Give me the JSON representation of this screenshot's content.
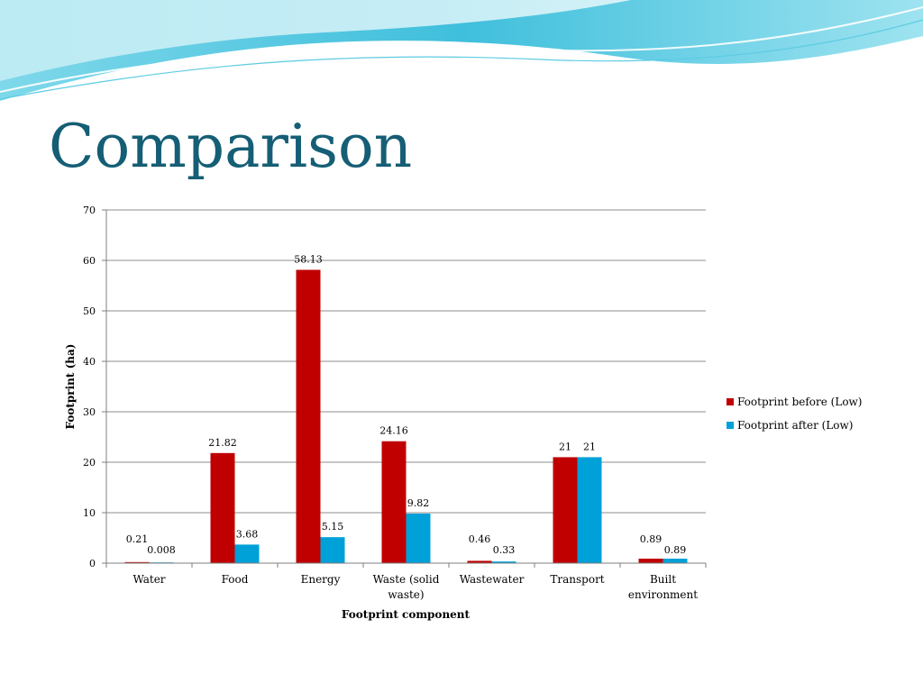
{
  "slide": {
    "title": "Comparison",
    "colors": {
      "title": "#155e75",
      "accent_wave": "#38bcd8"
    }
  },
  "chart_data": {
    "type": "bar",
    "categories": [
      "Water",
      "Food",
      "Energy",
      "Waste (solid waste)",
      "Wastewater",
      "Transport",
      "Built environment"
    ],
    "series": [
      {
        "name": "Footprint before (Low)",
        "color": "#c00000",
        "values": [
          0.21,
          21.82,
          58.13,
          24.16,
          0.46,
          21,
          0.89
        ],
        "labels": [
          "0.21",
          "21.82",
          "58.13",
          "24.16",
          "0.46",
          "21",
          "0.89"
        ]
      },
      {
        "name": "Footprint after (Low)",
        "color": "#00a0d8",
        "values": [
          0.008,
          3.68,
          5.15,
          9.82,
          0.33,
          21,
          0.89
        ],
        "labels": [
          "0.008",
          "3.68",
          "5.15",
          "9.82",
          "0.33",
          "21",
          "0.89"
        ]
      }
    ],
    "xlabel": "Footprint component",
    "ylabel": "Footprint (ha)",
    "ylim": [
      0,
      70
    ],
    "yticks": [
      0,
      10,
      20,
      30,
      40,
      50,
      60,
      70
    ],
    "grid": true,
    "legend": "right"
  }
}
